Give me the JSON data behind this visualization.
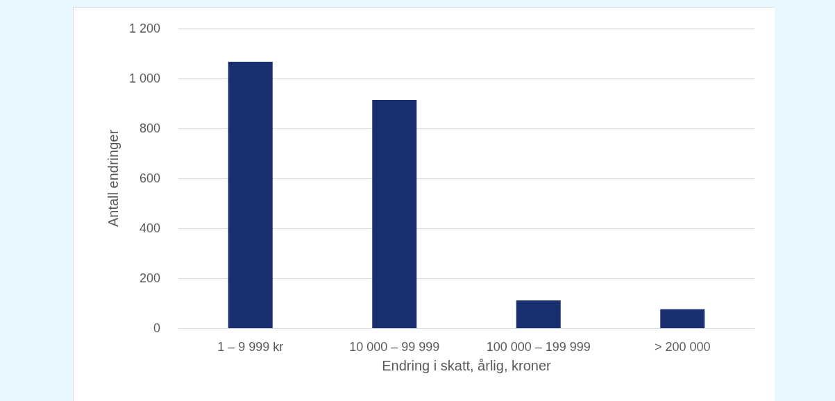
{
  "chart_data": {
    "type": "bar",
    "xlabel": "Endring i skatt, årlig, kroner",
    "ylabel": "Antall endringer",
    "categories": [
      "1 – 9 999 kr",
      "10 000 – 99 999",
      "100 000 – 199 999",
      "> 200 000"
    ],
    "values": [
      1067,
      914,
      111,
      76
    ],
    "color": "#18306f",
    "ylim": [
      0,
      1200
    ],
    "yticks": [
      {
        "value": 0,
        "label": "0"
      },
      {
        "value": 200,
        "label": "200"
      },
      {
        "value": 400,
        "label": "400"
      },
      {
        "value": 600,
        "label": "600"
      },
      {
        "value": 800,
        "label": "800"
      },
      {
        "value": 1000,
        "label": "1 000"
      },
      {
        "value": 1200,
        "label": "1 200"
      }
    ],
    "grid": "y"
  }
}
